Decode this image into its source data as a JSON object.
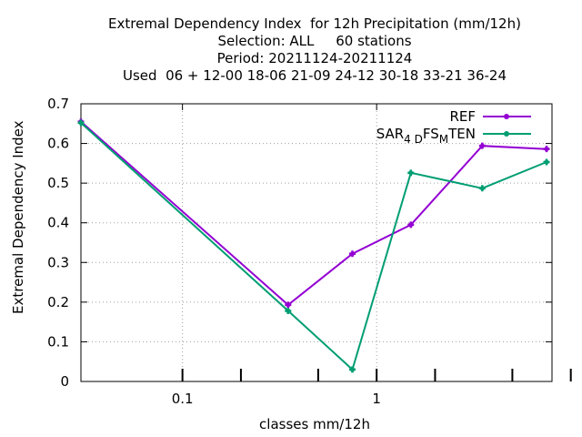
{
  "chart_data": {
    "type": "line",
    "title_lines": [
      "Extremal Dependency Index  for 12h Precipitation (mm/12h)",
      "Selection: ALL     60 stations",
      "Period: 20211124-20211124",
      "Used  06 + 12-00 18-06 21-09 24-12 30-18 33-21 36-24"
    ],
    "xlabel": "classes mm/12h",
    "ylabel": "Extremal Dependency Index",
    "x_scale": "log",
    "xlim": [
      0.03,
      8
    ],
    "ylim": [
      0,
      0.7
    ],
    "x_ticks": [
      0.1,
      1
    ],
    "x_tick_labels": [
      "0.1",
      "1"
    ],
    "y_ticks": [
      0,
      0.1,
      0.2,
      0.3,
      0.4,
      0.5,
      0.6,
      0.7
    ],
    "y_tick_labels": [
      "0",
      "0.1",
      "0.2",
      "0.3",
      "0.4",
      "0.5",
      "0.6",
      "0.7"
    ],
    "grid": true,
    "legend_position": "top-right",
    "series": [
      {
        "name": "REF",
        "color": "#9400d3",
        "x": [
          0.03,
          0.35,
          0.75,
          1.5,
          3.5,
          7.5
        ],
        "y": [
          0.655,
          0.193,
          0.322,
          0.395,
          0.594,
          0.586
        ]
      },
      {
        "name": "SAR_4D FS_M TEN",
        "legend_parts": [
          "SAR",
          "4 D",
          "FS",
          "M",
          "TEN"
        ],
        "color": "#009e73",
        "x": [
          0.03,
          0.35,
          0.75,
          1.5,
          3.5,
          7.5
        ],
        "y": [
          0.652,
          0.178,
          0.03,
          0.526,
          0.487,
          0.553
        ]
      }
    ],
    "extra_minor_ticks": [
      0.2,
      0.5,
      2,
      5,
      10
    ]
  }
}
